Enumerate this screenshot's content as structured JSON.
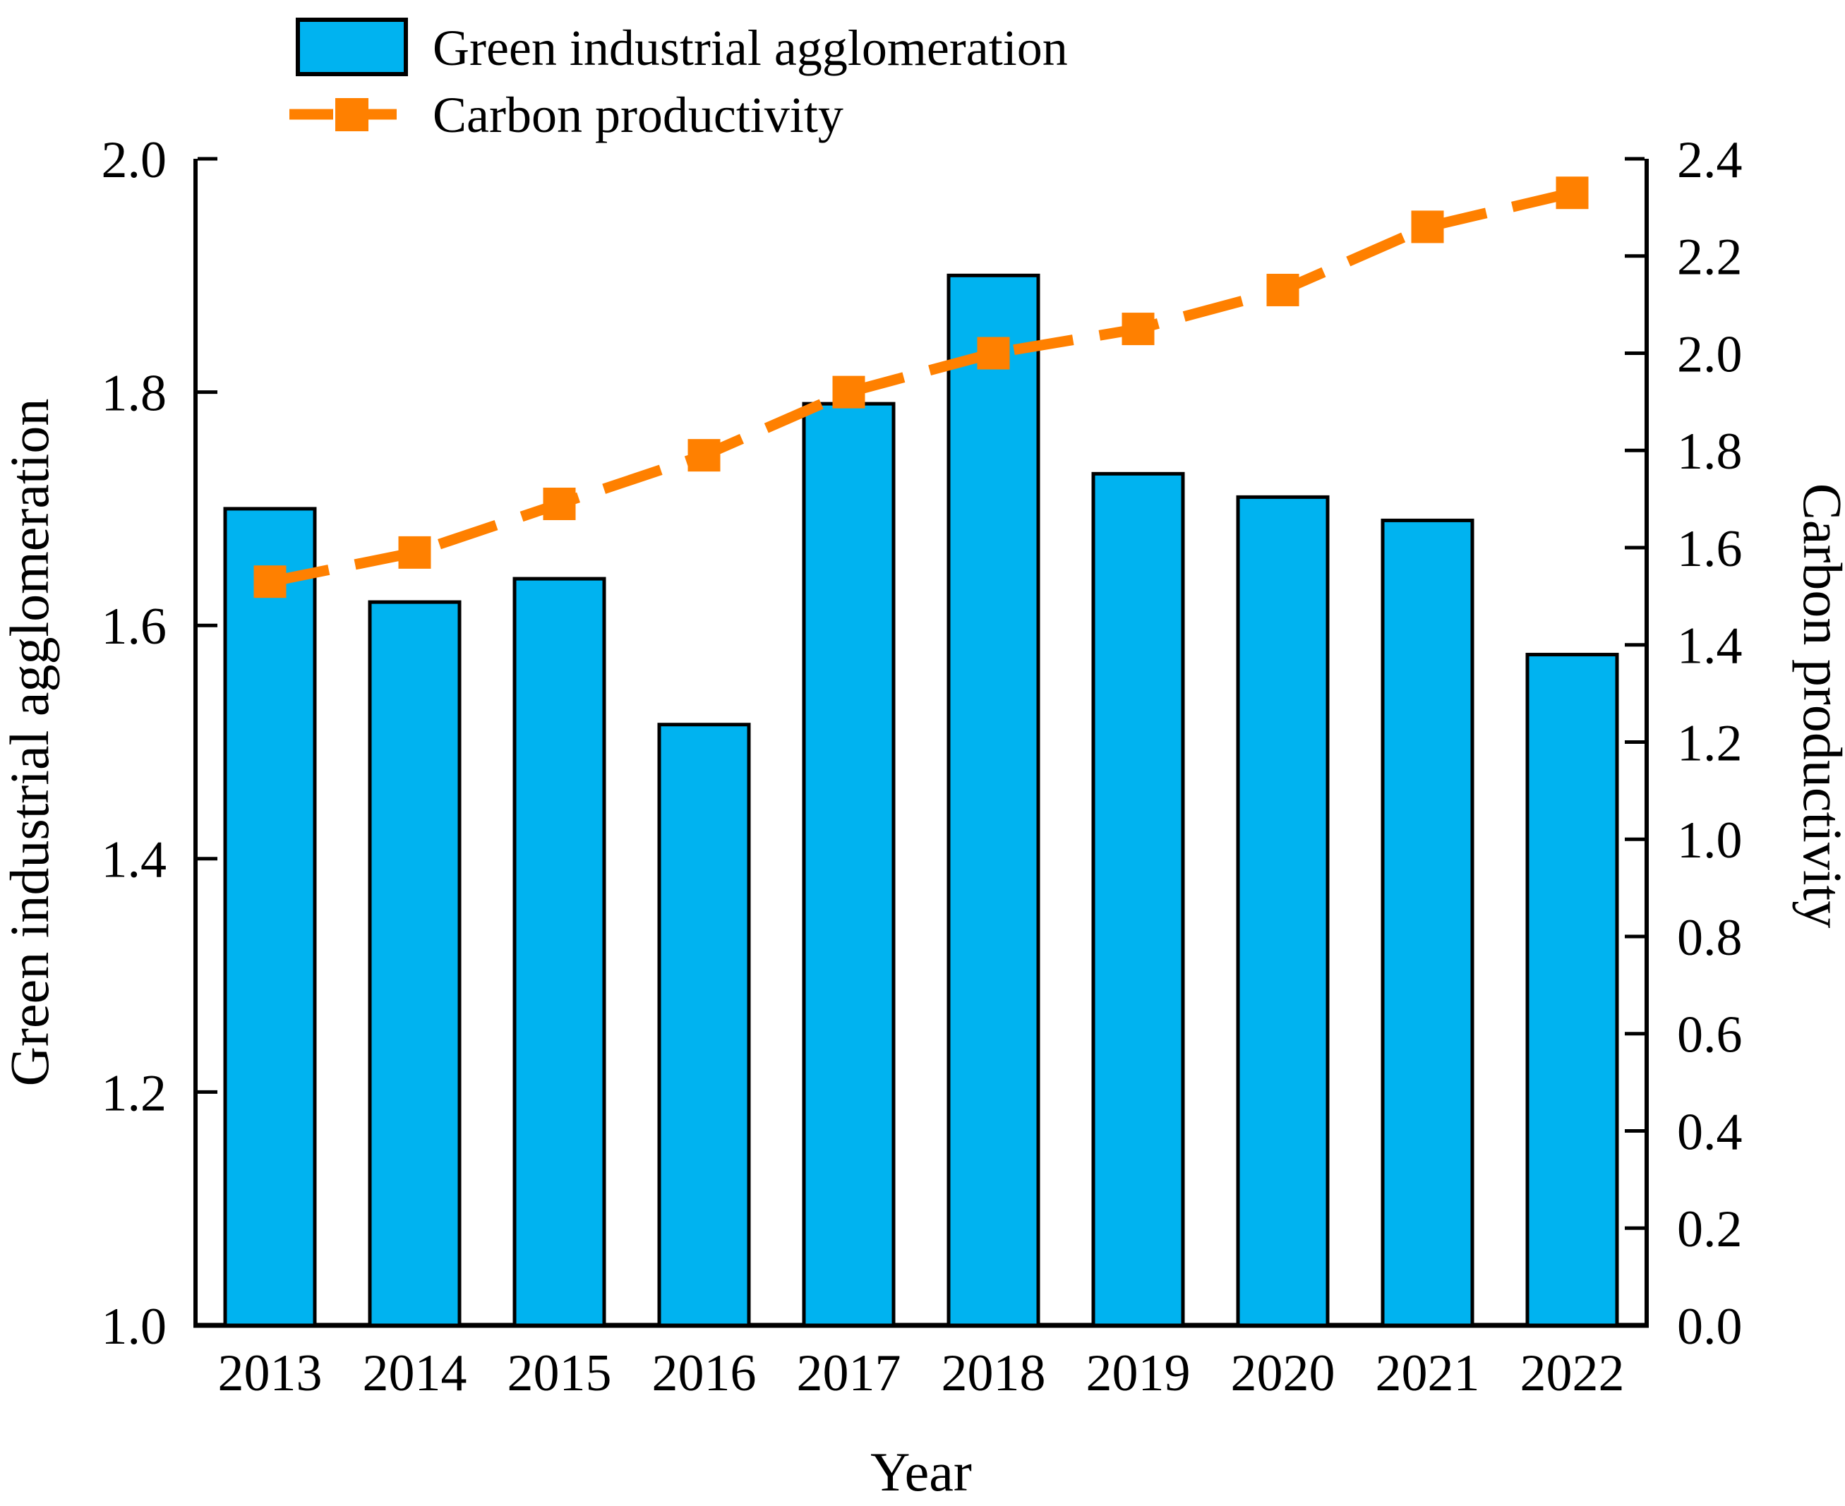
{
  "figure": {
    "background": "#ffffff",
    "text_color": "#000000",
    "axis_color": "#000000"
  },
  "chart_data": {
    "type": "bar",
    "subtype": "dual-axis bar + dashed line with square markers",
    "categories": [
      "2013",
      "2014",
      "2015",
      "2016",
      "2017",
      "2018",
      "2019",
      "2020",
      "2021",
      "2022"
    ],
    "series": [
      {
        "name": "Green industrial agglomeration",
        "type": "bar",
        "axis": "left",
        "color": "#00B3F0",
        "border_color": "#000000",
        "values": [
          1.7,
          1.62,
          1.64,
          1.515,
          1.79,
          1.9,
          1.73,
          1.71,
          1.69,
          1.575
        ]
      },
      {
        "name": "Carbon productivity",
        "type": "line",
        "axis": "right",
        "color": "#FF8000",
        "line_style": "dashed",
        "marker": "square",
        "values": [
          1.53,
          1.59,
          1.69,
          1.79,
          1.92,
          2.0,
          2.05,
          2.13,
          2.26,
          2.33
        ]
      }
    ],
    "title": "",
    "xlabel": "Year",
    "ylabel_left": "Green industrial agglomeration",
    "ylabel_right": "Carbon productivity",
    "ylim_left": [
      1.0,
      2.0
    ],
    "ylim_right": [
      0.0,
      2.4
    ],
    "left_tick_labels": [
      "1.0",
      "1.2",
      "1.4",
      "1.6",
      "1.8",
      "2.0"
    ],
    "right_tick_labels": [
      "0.0",
      "0.2",
      "0.4",
      "0.6",
      "0.8",
      "1.0",
      "1.2",
      "1.4",
      "1.6",
      "1.8",
      "2.0",
      "2.2",
      "2.4"
    ],
    "grid": false,
    "legend_position": "top-left"
  }
}
